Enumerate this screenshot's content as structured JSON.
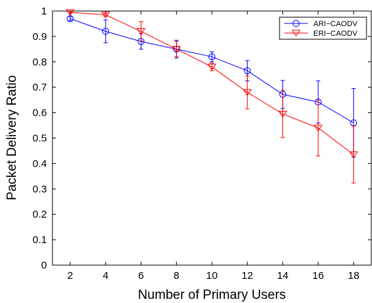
{
  "chart_data": {
    "type": "line",
    "xlabel": "Number of Primary Users",
    "ylabel": "Packet Delivery Ratio",
    "x": [
      2,
      4,
      6,
      8,
      10,
      12,
      14,
      16,
      18
    ],
    "xlim": [
      1,
      19
    ],
    "ylim": [
      0,
      1
    ],
    "xticks": [
      "2",
      "4",
      "6",
      "8",
      "10",
      "12",
      "14",
      "16",
      "18"
    ],
    "yticks": [
      "0",
      "0.1",
      "0.2",
      "0.3",
      "0.4",
      "0.5",
      "0.6",
      "0.7",
      "0.8",
      "0.9",
      "1"
    ],
    "grid": false,
    "legend_position": "top-right",
    "series": [
      {
        "name": "ARI−CAODV",
        "color": "#0000ff",
        "marker": "circle",
        "values": [
          0.97,
          0.92,
          0.88,
          0.85,
          0.82,
          0.765,
          0.672,
          0.642,
          0.56
        ],
        "error": [
          0.008,
          0.045,
          0.03,
          0.035,
          0.02,
          0.04,
          0.055,
          0.083,
          0.135
        ]
      },
      {
        "name": "ERI−CAODV",
        "color": "#ff0000",
        "marker": "triangle-down",
        "values": [
          0.995,
          0.985,
          0.92,
          0.85,
          0.78,
          0.68,
          0.595,
          0.54,
          0.435
        ],
        "error": [
          0.003,
          0.005,
          0.038,
          0.03,
          0.015,
          0.065,
          0.093,
          0.11,
          0.112
        ]
      }
    ]
  }
}
